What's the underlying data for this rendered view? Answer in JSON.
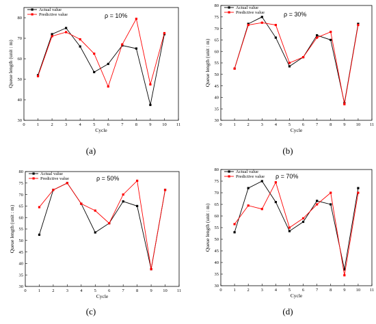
{
  "figure": {
    "panels": [
      "a",
      "b",
      "c",
      "d"
    ]
  },
  "colors": {
    "actual": "#000000",
    "predictive": "#ff0000"
  },
  "chart_data": [
    {
      "type": "line",
      "caption": "(a)",
      "annotation": "ρ =  10%",
      "xlabel": "Cycle",
      "ylabel": "Queue length  (unit : m)",
      "xlim": [
        0,
        11
      ],
      "ylim": [
        30,
        85
      ],
      "xticks": [
        0,
        1,
        2,
        3,
        4,
        5,
        6,
        7,
        8,
        9,
        10,
        11
      ],
      "yticks": [
        30,
        40,
        50,
        60,
        70,
        80
      ],
      "x": [
        1,
        2,
        3,
        4,
        5,
        6,
        7,
        8,
        9,
        10
      ],
      "legend": "top-left",
      "series": [
        {
          "name": "Actual value",
          "color": "#000000",
          "marker": "square",
          "values": [
            52,
            72,
            75,
            66,
            53.5,
            57.5,
            66.5,
            65,
            37.5,
            72
          ]
        },
        {
          "name": "Predictive value",
          "color": "#ff0000",
          "marker": "square",
          "values": [
            51.5,
            71,
            73,
            69.5,
            62.5,
            46.5,
            67,
            79.5,
            47.5,
            72.5
          ]
        }
      ]
    },
    {
      "type": "line",
      "caption": "(b)",
      "annotation": "ρ = 30%",
      "xlabel": "Cycle",
      "ylabel": "Queue length  (unit : m)",
      "xlim": [
        0,
        11
      ],
      "ylim": [
        30,
        80
      ],
      "xticks": [
        0,
        1,
        2,
        3,
        4,
        5,
        6,
        7,
        8,
        9,
        10,
        11
      ],
      "yticks": [
        30,
        35,
        40,
        45,
        50,
        55,
        60,
        65,
        70,
        75,
        80
      ],
      "x": [
        1,
        2,
        3,
        4,
        5,
        6,
        7,
        8,
        9,
        10
      ],
      "legend": "top-left",
      "series": [
        {
          "name": "Actual value",
          "color": "#000000",
          "marker": "square",
          "values": [
            52.5,
            72,
            75,
            66,
            53.5,
            57.5,
            67,
            65,
            37.5,
            72
          ]
        },
        {
          "name": "Predictive value",
          "color": "#ff0000",
          "marker": "square",
          "values": [
            52.5,
            71.5,
            72.5,
            71.5,
            55,
            57.5,
            66,
            68.5,
            37,
            71.5
          ]
        }
      ]
    },
    {
      "type": "line",
      "caption": "(c)",
      "annotation": "ρ = 50%",
      "xlabel": "Cycle",
      "ylabel": "Queue length  (unit : m)",
      "xlim": [
        0,
        11
      ],
      "ylim": [
        30,
        80
      ],
      "xticks": [
        0,
        1,
        2,
        3,
        4,
        5,
        6,
        7,
        8,
        9,
        10,
        11
      ],
      "yticks": [
        30,
        35,
        40,
        45,
        50,
        55,
        60,
        65,
        70,
        75,
        80
      ],
      "x": [
        1,
        2,
        3,
        4,
        5,
        6,
        7,
        8,
        9,
        10
      ],
      "legend": "top-left",
      "series": [
        {
          "name": "Actual value",
          "color": "#000000",
          "marker": "square",
          "values": [
            52.5,
            72,
            75,
            66,
            53.5,
            57.5,
            67,
            65,
            37.5,
            72
          ]
        },
        {
          "name": "Predictive value",
          "color": "#ff0000",
          "marker": "square",
          "values": [
            64.5,
            72,
            75,
            66,
            63,
            57.5,
            70,
            76,
            37.5,
            72
          ]
        }
      ]
    },
    {
      "type": "line",
      "caption": "(d)",
      "annotation": "ρ = 70%",
      "xlabel": "Cycle",
      "ylabel": "Queue length  (unit : m)",
      "xlim": [
        0,
        11
      ],
      "ylim": [
        30,
        80
      ],
      "xticks": [
        0,
        1,
        2,
        3,
        4,
        5,
        6,
        7,
        8,
        9,
        10,
        11
      ],
      "yticks": [
        30,
        35,
        40,
        45,
        50,
        55,
        60,
        65,
        70,
        75,
        80
      ],
      "x": [
        1,
        2,
        3,
        4,
        5,
        6,
        7,
        8,
        9,
        10
      ],
      "legend": "top-left",
      "series": [
        {
          "name": "Actual value",
          "color": "#000000",
          "marker": "square",
          "values": [
            53,
            72,
            75,
            66,
            53.5,
            57.5,
            66.5,
            65,
            37,
            72
          ]
        },
        {
          "name": "Predictive value",
          "color": "#ff0000",
          "marker": "square",
          "values": [
            56.5,
            64.5,
            63,
            74.5,
            55,
            59,
            65,
            70,
            34.5,
            70
          ]
        }
      ]
    }
  ]
}
